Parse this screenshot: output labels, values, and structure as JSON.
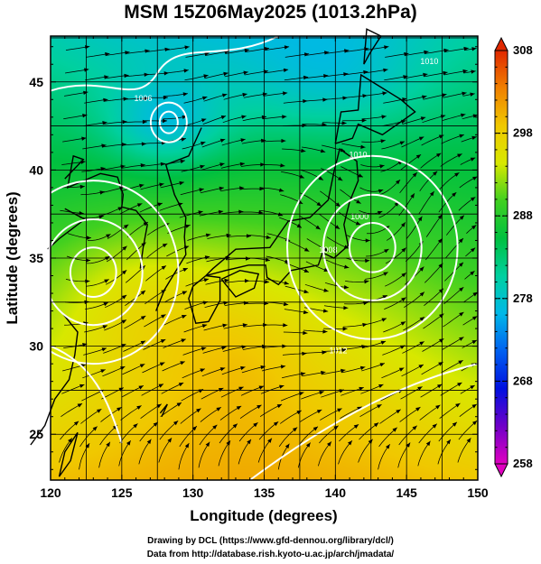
{
  "title": "MSM 15Z06May2025 (1013.2hPa)",
  "xlabel": "Longitude (degrees)",
  "ylabel": "Latitude  (degrees)",
  "credit_line1": "Drawing by DCL (https://www.gfd-dennou.org/library/dcl/)",
  "credit_line2": "Data from http://database.rish.kyoto-u.ac.jp/arch/jmadata/",
  "chart_data": {
    "type": "heatmap",
    "title": "MSM 15Z06May2025 (1013.2hPa)",
    "xlabel": "Longitude (degrees)",
    "ylabel": "Latitude  (degrees)",
    "xlim": [
      120,
      150
    ],
    "ylim": [
      22.4,
      47.6
    ],
    "xticks": [
      120,
      125,
      130,
      135,
      140,
      145,
      150
    ],
    "yticks": [
      25,
      30,
      35,
      40,
      45
    ],
    "grid": true,
    "colorbar": {
      "min": 258,
      "max": 308,
      "ticks": [
        258,
        268,
        278,
        288,
        298,
        308
      ],
      "colors": [
        "#e000c0",
        "#7000c8",
        "#0010e0",
        "#0060f0",
        "#00b8e8",
        "#00d0a0",
        "#00c040",
        "#40d020",
        "#d8e800",
        "#f0c800",
        "#f08000",
        "#e02800"
      ]
    },
    "contour_labels": [
      {
        "text": "1006",
        "lon": 126.5,
        "lat": 43.9
      },
      {
        "text": "1010",
        "lon": 141.6,
        "lat": 40.7
      },
      {
        "text": "1010",
        "lon": 146.6,
        "lat": 46.0
      },
      {
        "text": "1008",
        "lon": 139.5,
        "lat": 35.3
      },
      {
        "text": "1000",
        "lon": 141.7,
        "lat": 37.2
      },
      {
        "text": "1012",
        "lon": 140.2,
        "lat": 29.6
      }
    ],
    "low_centers": [
      {
        "lon": 142.6,
        "lat": 35.6
      },
      {
        "lon": 123.0,
        "lat": 34.2
      }
    ]
  }
}
